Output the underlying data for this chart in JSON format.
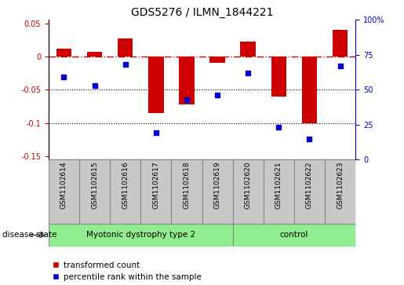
{
  "title": "GDS5276 / ILMN_1844221",
  "categories": [
    "GSM1102614",
    "GSM1102615",
    "GSM1102616",
    "GSM1102617",
    "GSM1102618",
    "GSM1102619",
    "GSM1102620",
    "GSM1102621",
    "GSM1102622",
    "GSM1102623"
  ],
  "red_values": [
    0.012,
    0.007,
    0.027,
    -0.085,
    -0.072,
    -0.01,
    0.022,
    -0.06,
    -0.1,
    0.04
  ],
  "blue_values": [
    59,
    53,
    68,
    19,
    43,
    46,
    62,
    23,
    15,
    67
  ],
  "group1_count": 6,
  "group2_count": 4,
  "group1_label": "Myotonic dystrophy type 2",
  "group2_label": "control",
  "group_color": "#90EE90",
  "ylim_left": [
    -0.155,
    0.055
  ],
  "ylim_right": [
    0,
    100
  ],
  "yticks_left": [
    -0.15,
    -0.1,
    -0.05,
    0,
    0.05
  ],
  "yticks_right": [
    0,
    25,
    50,
    75,
    100
  ],
  "red_color": "#CC0000",
  "blue_color": "#0000CC",
  "bar_width": 0.5,
  "legend_labels": [
    "transformed count",
    "percentile rank within the sample"
  ],
  "disease_state_label": "disease state",
  "gray_color": "#C8C8C8"
}
